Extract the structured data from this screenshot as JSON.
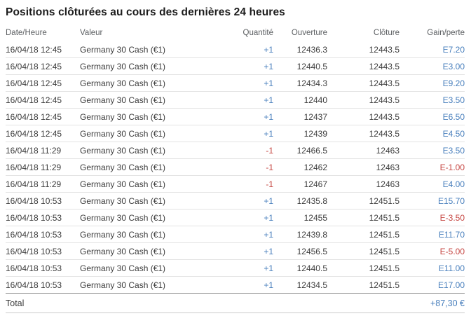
{
  "title": "Positions clôturées au cours des dernières 24 heures",
  "table": {
    "headers": {
      "date": "Date/Heure",
      "instrument": "Valeur",
      "quantity": "Quantité",
      "open": "Ouverture",
      "close": "Clôture",
      "gain": "Gain/perte"
    },
    "rows": [
      {
        "date": "16/04/18 12:45",
        "instrument": "Germany 30 Cash (€1)",
        "quantity": "+1",
        "quantity_tone": "pos",
        "open": "12436.3",
        "close": "12443.5",
        "gain": "E7.20",
        "gain_tone": "pos"
      },
      {
        "date": "16/04/18 12:45",
        "instrument": "Germany 30 Cash (€1)",
        "quantity": "+1",
        "quantity_tone": "pos",
        "open": "12440.5",
        "close": "12443.5",
        "gain": "E3.00",
        "gain_tone": "pos"
      },
      {
        "date": "16/04/18 12:45",
        "instrument": "Germany 30 Cash (€1)",
        "quantity": "+1",
        "quantity_tone": "pos",
        "open": "12434.3",
        "close": "12443.5",
        "gain": "E9.20",
        "gain_tone": "pos"
      },
      {
        "date": "16/04/18 12:45",
        "instrument": "Germany 30 Cash (€1)",
        "quantity": "+1",
        "quantity_tone": "pos",
        "open": "12440",
        "close": "12443.5",
        "gain": "E3.50",
        "gain_tone": "pos"
      },
      {
        "date": "16/04/18 12:45",
        "instrument": "Germany 30 Cash (€1)",
        "quantity": "+1",
        "quantity_tone": "pos",
        "open": "12437",
        "close": "12443.5",
        "gain": "E6.50",
        "gain_tone": "pos"
      },
      {
        "date": "16/04/18 12:45",
        "instrument": "Germany 30 Cash (€1)",
        "quantity": "+1",
        "quantity_tone": "pos",
        "open": "12439",
        "close": "12443.5",
        "gain": "E4.50",
        "gain_tone": "pos"
      },
      {
        "date": "16/04/18 11:29",
        "instrument": "Germany 30 Cash (€1)",
        "quantity": "-1",
        "quantity_tone": "neg",
        "open": "12466.5",
        "close": "12463",
        "gain": "E3.50",
        "gain_tone": "pos"
      },
      {
        "date": "16/04/18 11:29",
        "instrument": "Germany 30 Cash (€1)",
        "quantity": "-1",
        "quantity_tone": "neg",
        "open": "12462",
        "close": "12463",
        "gain": "E-1.00",
        "gain_tone": "neg"
      },
      {
        "date": "16/04/18 11:29",
        "instrument": "Germany 30 Cash (€1)",
        "quantity": "-1",
        "quantity_tone": "neg",
        "open": "12467",
        "close": "12463",
        "gain": "E4.00",
        "gain_tone": "pos"
      },
      {
        "date": "16/04/18 10:53",
        "instrument": "Germany 30 Cash (€1)",
        "quantity": "+1",
        "quantity_tone": "pos",
        "open": "12435.8",
        "close": "12451.5",
        "gain": "E15.70",
        "gain_tone": "pos"
      },
      {
        "date": "16/04/18 10:53",
        "instrument": "Germany 30 Cash (€1)",
        "quantity": "+1",
        "quantity_tone": "pos",
        "open": "12455",
        "close": "12451.5",
        "gain": "E-3.50",
        "gain_tone": "neg"
      },
      {
        "date": "16/04/18 10:53",
        "instrument": "Germany 30 Cash (€1)",
        "quantity": "+1",
        "quantity_tone": "pos",
        "open": "12439.8",
        "close": "12451.5",
        "gain": "E11.70",
        "gain_tone": "pos"
      },
      {
        "date": "16/04/18 10:53",
        "instrument": "Germany 30 Cash (€1)",
        "quantity": "+1",
        "quantity_tone": "pos",
        "open": "12456.5",
        "close": "12451.5",
        "gain": "E-5.00",
        "gain_tone": "neg"
      },
      {
        "date": "16/04/18 10:53",
        "instrument": "Germany 30 Cash (€1)",
        "quantity": "+1",
        "quantity_tone": "pos",
        "open": "12440.5",
        "close": "12451.5",
        "gain": "E11.00",
        "gain_tone": "pos"
      },
      {
        "date": "16/04/18 10:53",
        "instrument": "Germany 30 Cash (€1)",
        "quantity": "+1",
        "quantity_tone": "pos",
        "open": "12434.5",
        "close": "12451.5",
        "gain": "E17.00",
        "gain_tone": "pos"
      }
    ],
    "total": {
      "label": "Total",
      "value": "+87,30 €"
    }
  },
  "colors": {
    "positive_blue": "#4a80bd",
    "negative_red": "#c64743",
    "header_text": "#5d6063",
    "body_text": "#3c3c3c",
    "row_border": "#e3e3e3",
    "total_top_border": "#8f8f8f",
    "total_bottom_border": "#cbcbcb"
  }
}
